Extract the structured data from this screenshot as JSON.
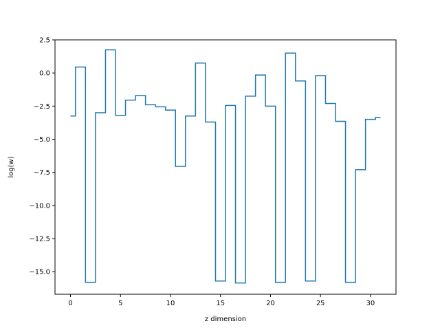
{
  "chart_data": {
    "type": "line",
    "drawstyle": "steps-mid",
    "title": "",
    "xlabel": "z dimension",
    "ylabel": "log(w)",
    "xlim": [
      -1.55,
      32.55
    ],
    "ylim": [
      -16.7,
      2.5
    ],
    "grid": false,
    "line_color": "#1f77b4",
    "x_ticks": [
      0,
      5,
      10,
      15,
      20,
      25,
      30
    ],
    "x_tick_labels": [
      "0",
      "5",
      "10",
      "15",
      "20",
      "25",
      "30"
    ],
    "y_ticks": [
      2.5,
      0.0,
      -2.5,
      -5.0,
      -7.5,
      -10.0,
      -12.5,
      -15.0
    ],
    "y_tick_labels": [
      "2.5",
      "0.0",
      "−2.5",
      "−5.0",
      "−7.5",
      "−10.0",
      "−12.5",
      "−15.0"
    ],
    "x": [
      0,
      1,
      2,
      3,
      4,
      5,
      6,
      7,
      8,
      9,
      10,
      11,
      12,
      13,
      14,
      15,
      16,
      17,
      18,
      19,
      20,
      21,
      22,
      23,
      24,
      25,
      26,
      27,
      28,
      29,
      30,
      31
    ],
    "y": [
      -3.25,
      0.45,
      -15.8,
      -3.0,
      1.75,
      -3.2,
      -2.05,
      -1.7,
      -2.4,
      -2.55,
      -2.8,
      -7.05,
      -3.25,
      0.75,
      -3.7,
      -15.7,
      -2.45,
      -15.85,
      -1.75,
      -0.15,
      -2.5,
      -15.8,
      1.5,
      -0.6,
      -15.7,
      -0.2,
      -2.3,
      -3.65,
      -15.8,
      -7.3,
      -3.5,
      -3.35
    ]
  }
}
